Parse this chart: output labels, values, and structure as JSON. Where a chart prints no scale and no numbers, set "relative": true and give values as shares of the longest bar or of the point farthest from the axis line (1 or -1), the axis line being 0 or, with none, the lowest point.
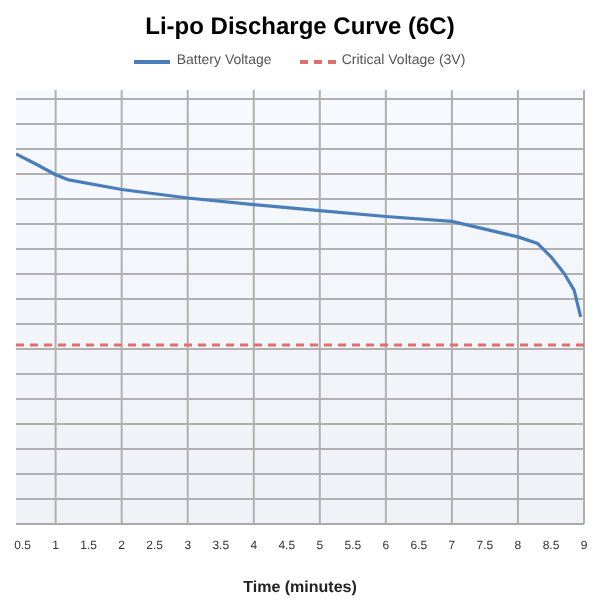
{
  "chart_data": {
    "type": "line",
    "title": "Li-po Discharge Curve (6C)",
    "xlabel": "Time (minutes)",
    "relative": true,
    "x": [
      0.4,
      0.7,
      1,
      1.2,
      2,
      3,
      4,
      5,
      6,
      7,
      8,
      8.3,
      8.5,
      8.7,
      8.85,
      8.95
    ],
    "series": [
      {
        "name": "Battery Voltage",
        "color": "#4a7ebb",
        "values": [
          1,
          0.973,
          0.944,
          0.93,
          0.904,
          0.881,
          0.863,
          0.847,
          0.831,
          0.818,
          0.776,
          0.758,
          0.722,
          0.677,
          0.632,
          0.56
        ]
      }
    ],
    "xlim": [
      0.4,
      9
    ],
    "xticks": [
      0.5,
      1,
      1.5,
      2,
      2.5,
      3,
      3.5,
      4,
      4.5,
      5,
      5.5,
      6,
      6.5,
      7,
      7.5,
      8,
      8.5,
      9
    ],
    "ref_lines": [
      {
        "axis": "y",
        "value": 0.484,
        "label": "Critical Voltage  (3V)",
        "color": "#e07070",
        "line_style": "dashed"
      }
    ],
    "grid": true,
    "legend": "top",
    "marker": "none",
    "line_style": "solid"
  }
}
